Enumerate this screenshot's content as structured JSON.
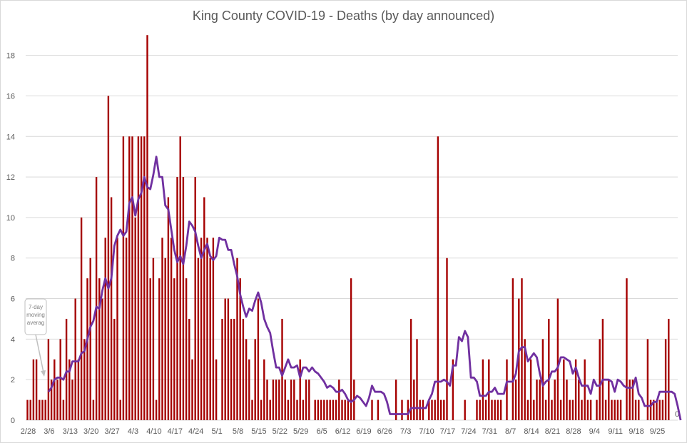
{
  "chart_data": {
    "type": "bar",
    "title": "King County COVID-19 - Deaths (by day announced)",
    "start_date": "2020-02-28",
    "ylim": [
      0,
      19.5
    ],
    "yticks": [
      0,
      2,
      4,
      6,
      8,
      10,
      12,
      14,
      16,
      18
    ],
    "xtick_labels": [
      "2/28",
      "3/6",
      "3/13",
      "3/20",
      "3/27",
      "4/3",
      "4/10",
      "4/17",
      "4/24",
      "5/1",
      "5/8",
      "5/15",
      "5/22",
      "5/29",
      "6/5",
      "6/12",
      "6/19",
      "6/26",
      "7/3",
      "7/10",
      "7/17",
      "7/24",
      "7/31",
      "8/7",
      "8/14",
      "8/21",
      "8/28",
      "9/4",
      "9/11",
      "9/18",
      "9/25"
    ],
    "grid": true,
    "colors": {
      "bars": "#a50000",
      "moving_average": "#7030a0",
      "gridline": "#d9d9d9",
      "text": "#595959"
    },
    "series": [
      {
        "name": "Deaths",
        "type": "bar",
        "values": [
          1,
          1,
          3,
          3,
          1,
          1,
          1,
          4,
          2,
          3,
          2,
          4,
          1,
          5,
          3,
          2,
          6,
          3,
          10,
          4,
          7,
          8,
          1,
          12,
          7,
          6,
          9,
          16,
          11,
          5,
          9,
          1,
          14,
          9,
          14,
          14,
          10,
          14,
          14,
          14,
          19,
          7,
          8,
          1,
          7,
          9,
          8,
          11,
          9,
          7,
          12,
          14,
          12,
          7,
          5,
          3,
          12,
          8,
          9,
          11,
          9,
          8,
          9,
          3,
          0,
          5,
          6,
          6,
          5,
          5,
          8,
          7,
          5,
          4,
          3,
          1,
          4,
          6,
          1,
          3,
          2,
          1,
          2,
          2,
          2,
          5,
          2,
          1,
          2,
          2,
          1,
          3,
          1,
          2,
          2,
          0,
          1,
          1,
          1,
          1,
          1,
          1,
          1,
          1,
          2,
          1,
          1,
          1,
          7,
          2,
          0,
          0,
          0,
          0,
          0,
          1,
          0,
          1,
          0,
          0,
          0,
          0,
          0,
          2,
          0,
          1,
          0,
          1,
          5,
          2,
          4,
          1,
          1,
          0,
          1,
          1,
          1,
          14,
          1,
          1,
          8,
          0,
          3,
          0,
          0,
          0,
          1,
          0,
          0,
          0,
          1,
          1,
          3,
          1,
          3,
          1,
          1,
          1,
          1,
          0,
          3,
          0,
          7,
          2,
          6,
          7,
          4,
          1,
          3,
          1,
          2,
          2,
          4,
          1,
          5,
          1,
          2,
          6,
          1,
          3,
          2,
          1,
          1,
          3,
          2,
          1,
          3,
          1,
          1,
          0,
          1,
          4,
          5,
          1,
          2,
          1,
          1,
          1,
          1,
          0,
          7,
          2,
          2,
          1,
          1,
          0,
          0,
          4,
          1,
          1,
          1,
          1,
          1,
          4,
          5,
          0,
          0,
          0,
          0,
          0,
          0
        ],
        "end_label": "0"
      },
      {
        "name": "7-day moving average",
        "type": "line",
        "start_index": 7,
        "values": [
          1.4,
          1.6,
          2,
          2.1,
          2.1,
          2,
          2.4,
          2.4,
          2.9,
          2.9,
          2.9,
          3.3,
          3.4,
          4,
          4.6,
          4.9,
          5.6,
          5.5,
          6.4,
          7,
          6.5,
          7,
          8.6,
          9.1,
          9.4,
          9.1,
          9.3,
          10.7,
          11,
          10.1,
          10.9,
          11.2,
          12,
          11.5,
          11.4,
          12.1,
          13,
          12,
          12,
          10.6,
          10.4,
          9.4,
          8.4,
          7.8,
          8.1,
          7.7,
          8.6,
          9.8,
          9.6,
          9.3,
          8.6,
          8,
          8.4,
          8.7,
          8.1,
          7.9,
          8.1,
          9,
          8.9,
          8.9,
          8.4,
          8.4,
          7.7,
          7.1,
          6.2,
          5.6,
          5.1,
          5.5,
          5.4,
          5.9,
          6.3,
          5.8,
          5,
          4.6,
          4.3,
          3.4,
          2.6,
          2.6,
          2.2,
          2.6,
          3,
          2.6,
          2.6,
          2.7,
          2.1,
          2.6,
          2.6,
          2.4,
          2.6,
          2.4,
          2.3,
          2.1,
          1.9,
          1.6,
          1.7,
          1.6,
          1.4,
          1.4,
          1.5,
          1.3,
          1,
          0.9,
          1,
          1.2,
          1.1,
          0.9,
          0.7,
          1.1,
          1.7,
          1.4,
          1.4,
          1.4,
          1.3,
          0.9,
          0.3,
          0.3,
          0.3,
          0.3,
          0.3,
          0.3,
          0.3,
          0.6,
          0.6,
          0.6,
          0.6,
          0.6,
          0.6,
          1,
          1.3,
          1.9,
          1.9,
          1.9,
          2,
          1.9,
          1.7,
          2.7,
          2.7,
          4.1,
          3.9,
          4.4,
          4.1,
          2.1,
          2.1,
          1.9,
          1.2,
          1.2,
          1.2,
          1.4,
          1.4,
          1.6,
          1.3,
          1.3,
          1.3,
          1.9,
          1.9,
          1.9,
          2.3,
          3.4,
          3.6,
          3.6,
          2.9,
          3.1,
          3.3,
          3.1,
          2.3,
          1.7,
          1.9,
          2,
          2.4,
          2.4,
          2.6,
          3.1,
          3.1,
          3,
          2.9,
          2.3,
          2.6,
          2.1,
          1.7,
          1.7,
          1.7,
          1.3,
          2,
          1.7,
          1.7,
          2,
          2,
          2,
          1.9,
          1.4,
          2,
          1.9,
          1.7,
          1.6,
          1.6,
          1.6,
          2.1,
          1.3,
          1.1,
          0.7,
          0.7,
          0.7,
          0.9,
          0.9,
          1.4,
          1.4,
          1.4,
          1.4,
          1.4,
          1.3,
          0.7,
          0
        ]
      }
    ],
    "annotation": {
      "lines": [
        "7-day",
        "moving",
        "averag"
      ]
    }
  }
}
